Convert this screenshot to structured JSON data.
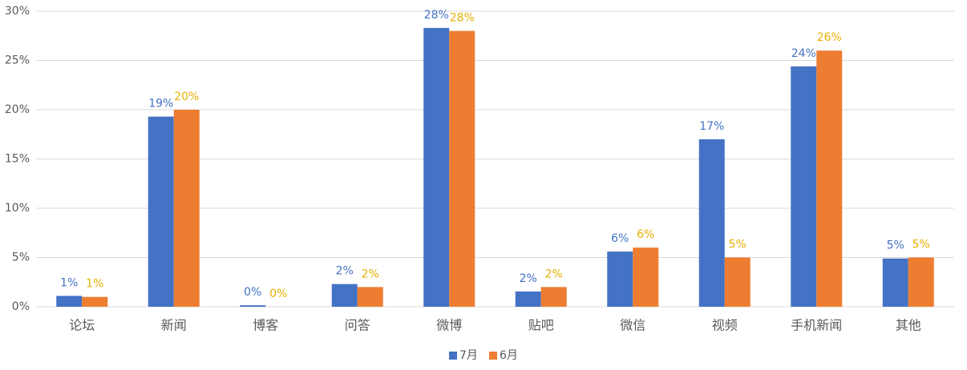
{
  "chart_data": {
    "type": "bar",
    "categories": [
      "论坛",
      "新闻",
      "博客",
      "问答",
      "微博",
      "贴吧",
      "微信",
      "视频",
      "手机新闻",
      "其他"
    ],
    "series": [
      {
        "name": "7月",
        "color": "#4472c4",
        "label_color": "#4472c4",
        "values": [
          1.1,
          19.3,
          0.15,
          2.3,
          28.3,
          1.55,
          5.6,
          17.0,
          24.4,
          4.9
        ],
        "value_labels": [
          "1%",
          "19%",
          "0%",
          "2%",
          "28%",
          "2%",
          "6%",
          "17%",
          "24%",
          "5%"
        ]
      },
      {
        "name": "6月",
        "color": "#ed7d31",
        "label_color": "#e6b000",
        "values": [
          1.0,
          20.0,
          0,
          2.0,
          28.0,
          2.0,
          6.0,
          5.0,
          26.0,
          5.0
        ],
        "value_labels": [
          "1%",
          "20%",
          "0%",
          "2%",
          "28%",
          "2%",
          "6%",
          "5%",
          "26%",
          "5%"
        ]
      }
    ],
    "ylim": [
      0,
      30
    ],
    "yticks": [
      {
        "value": 0,
        "label": "0%"
      },
      {
        "value": 5,
        "label": "5%"
      },
      {
        "value": 10,
        "label": "10%"
      },
      {
        "value": 15,
        "label": "15%"
      },
      {
        "value": 20,
        "label": "20%"
      },
      {
        "value": 25,
        "label": "25%"
      },
      {
        "value": 30,
        "label": "30%"
      }
    ],
    "grid": true,
    "legend": "bottom"
  }
}
